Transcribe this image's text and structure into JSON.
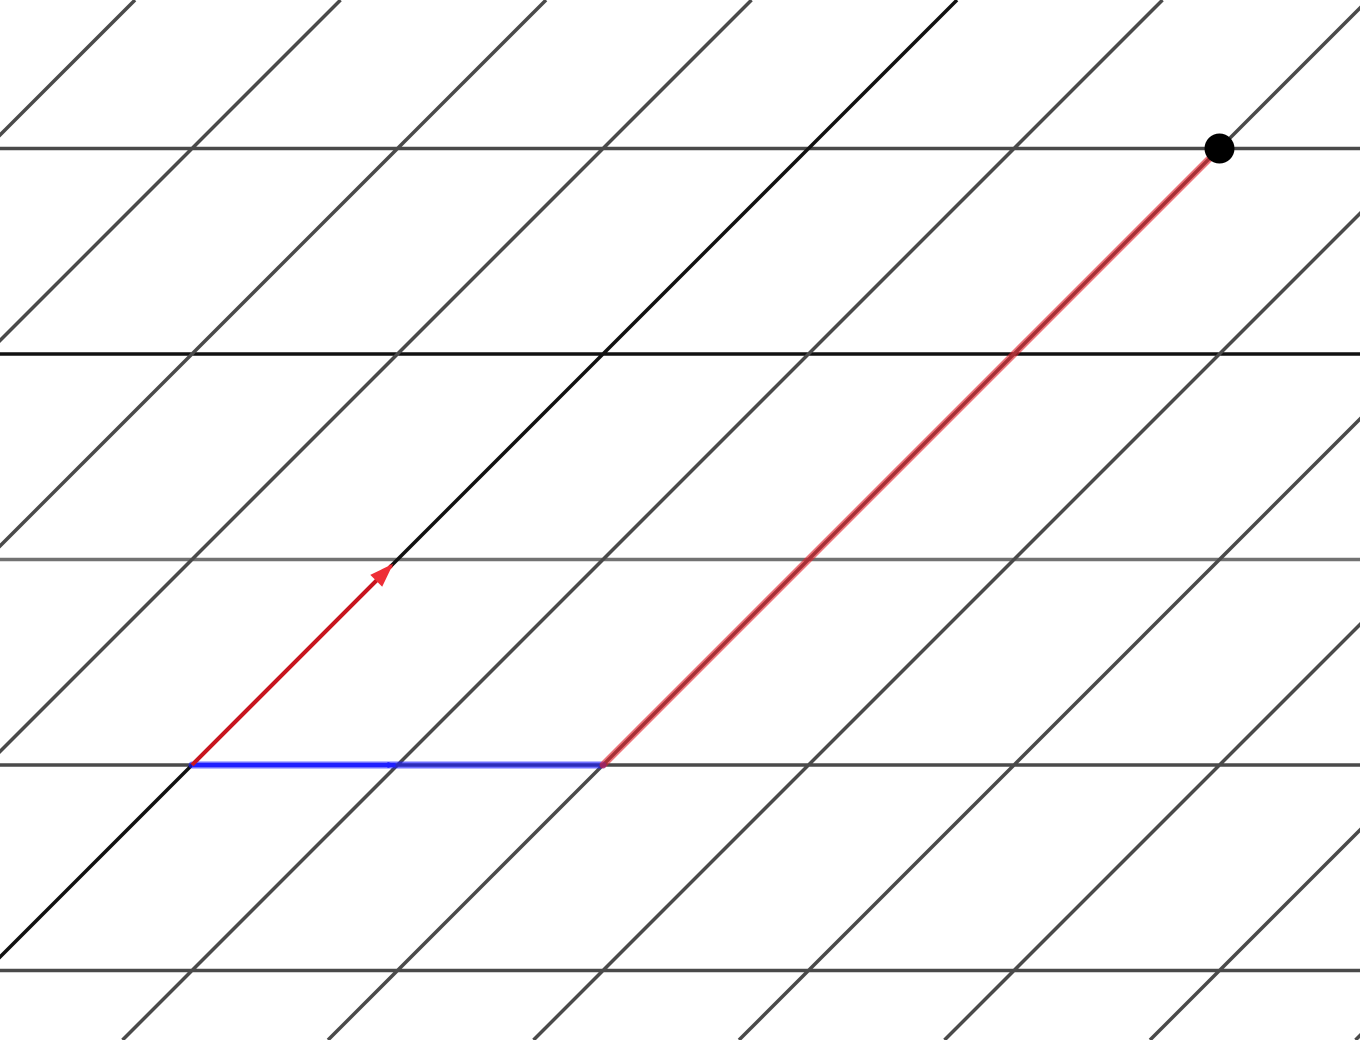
{
  "diagram": {
    "type": "skewed-lattice",
    "basis_vector_1": [
      1,
      0
    ],
    "basis_vector_2": [
      1,
      1
    ],
    "basis_vector_1_color": "#1a1aff",
    "basis_vector_2_color": "#e0202a",
    "grid_line_color": "#4a4a4a",
    "axis_line_color": "#111111",
    "path": {
      "steps": [
        {
          "vector": "basis_vector_1",
          "multiple": 2
        },
        {
          "vector": "basis_vector_2",
          "multiple": 3
        }
      ]
    },
    "endpoint": [
      5,
      3
    ],
    "endpoint_color": "#000000"
  }
}
